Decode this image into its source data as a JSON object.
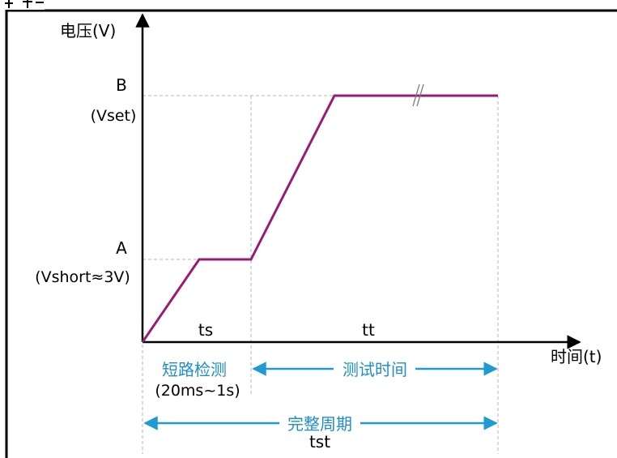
{
  "axes": {
    "y_label": "电压(V)",
    "x_label": "时间(t)"
  },
  "levels": {
    "b_letter": "B",
    "b_value": "(Vset)",
    "a_letter": "A",
    "a_value": "(Vshort≈3V)"
  },
  "phases": {
    "ts": "ts",
    "tt": "tt"
  },
  "annotations": {
    "short_detect": "短路检测",
    "short_detect_time": "(20ms~1s)",
    "test_time": "测试时间",
    "full_cycle": "完整周期",
    "tst": "tst"
  },
  "colors": {
    "curve": "#9a1a78",
    "arrows": "#1f9bd4",
    "frame": "#000000",
    "guides": "#b4b4b4"
  }
}
